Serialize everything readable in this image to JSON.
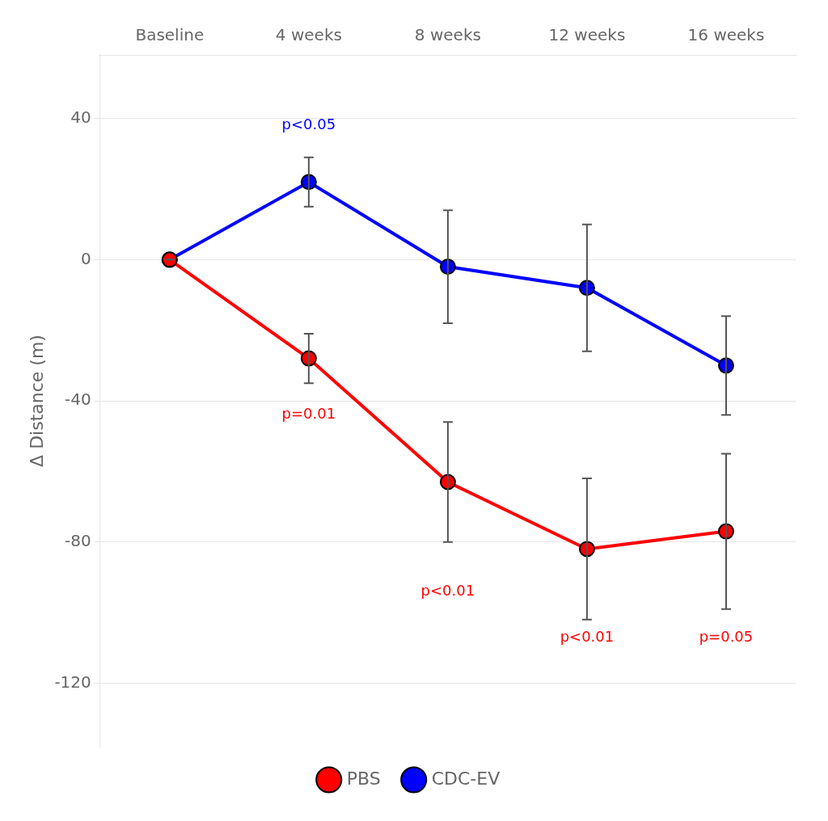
{
  "chart_data": {
    "type": "line",
    "categories": [
      "Baseline",
      "4 weeks",
      "8 weeks",
      "12 weeks",
      "16 weeks"
    ],
    "series": [
      {
        "name": "PBS",
        "color": "#ff0000",
        "marker": "circle",
        "values": [
          0,
          -28,
          -63,
          -82,
          -77
        ],
        "errors": [
          0,
          7,
          17,
          20,
          22
        ],
        "annotations": [
          {
            "category": "4 weeks",
            "y": -42,
            "text": "p=0.01"
          },
          {
            "category": "8 weeks",
            "y": -92,
            "text": "p<0.01"
          },
          {
            "category": "12 weeks",
            "y": -105,
            "text": "p<0.01"
          },
          {
            "category": "16 weeks",
            "y": -105,
            "text": "p=0.05"
          }
        ]
      },
      {
        "name": "CDC-EV",
        "color": "#0000ff",
        "marker": "circle",
        "values": [
          0,
          22,
          -2,
          -8,
          -30
        ],
        "errors": [
          0,
          7,
          16,
          18,
          14
        ],
        "annotations": [
          {
            "category": "4 weeks",
            "y": 36,
            "text": "p<0.05"
          }
        ]
      }
    ],
    "y_label": "Δ Distance (m)",
    "ylim": [
      -138,
      58
    ],
    "yticks": [
      40,
      0,
      -40,
      -80,
      -120
    ],
    "grid": true,
    "legend": "bottom"
  }
}
